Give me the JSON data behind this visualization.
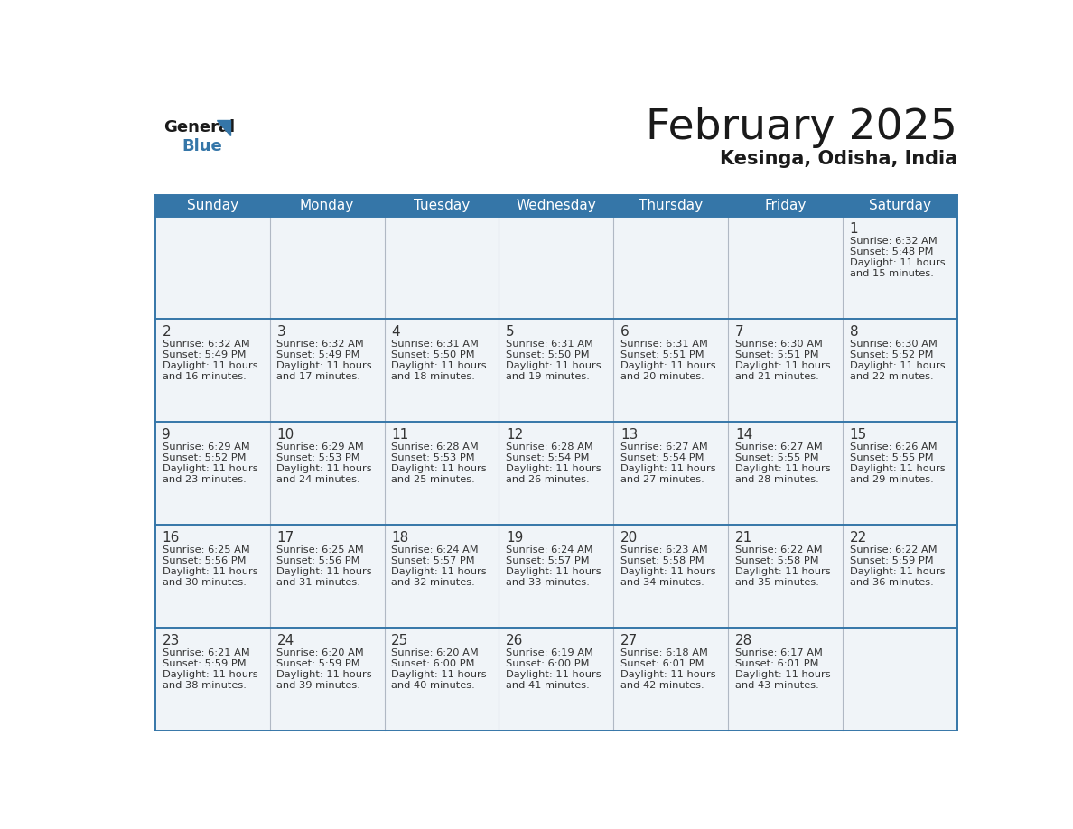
{
  "title": "February 2025",
  "subtitle": "Kesinga, Odisha, India",
  "header_color": "#3576a8",
  "header_text_color": "#ffffff",
  "days_of_week": [
    "Sunday",
    "Monday",
    "Tuesday",
    "Wednesday",
    "Thursday",
    "Friday",
    "Saturday"
  ],
  "bg_color": "#ffffff",
  "cell_bg": "#f0f4f8",
  "border_color": "#3576a8",
  "day_number_color": "#333333",
  "info_text_color": "#333333",
  "title_color": "#1a1a1a",
  "subtitle_color": "#1a1a1a",
  "calendar": [
    [
      null,
      null,
      null,
      null,
      null,
      null,
      1
    ],
    [
      2,
      3,
      4,
      5,
      6,
      7,
      8
    ],
    [
      9,
      10,
      11,
      12,
      13,
      14,
      15
    ],
    [
      16,
      17,
      18,
      19,
      20,
      21,
      22
    ],
    [
      23,
      24,
      25,
      26,
      27,
      28,
      null
    ]
  ],
  "sun_data": {
    "1": {
      "rise": "6:32 AM",
      "set": "5:48 PM",
      "daylight": "11 hours and 15 minutes."
    },
    "2": {
      "rise": "6:32 AM",
      "set": "5:49 PM",
      "daylight": "11 hours and 16 minutes."
    },
    "3": {
      "rise": "6:32 AM",
      "set": "5:49 PM",
      "daylight": "11 hours and 17 minutes."
    },
    "4": {
      "rise": "6:31 AM",
      "set": "5:50 PM",
      "daylight": "11 hours and 18 minutes."
    },
    "5": {
      "rise": "6:31 AM",
      "set": "5:50 PM",
      "daylight": "11 hours and 19 minutes."
    },
    "6": {
      "rise": "6:31 AM",
      "set": "5:51 PM",
      "daylight": "11 hours and 20 minutes."
    },
    "7": {
      "rise": "6:30 AM",
      "set": "5:51 PM",
      "daylight": "11 hours and 21 minutes."
    },
    "8": {
      "rise": "6:30 AM",
      "set": "5:52 PM",
      "daylight": "11 hours and 22 minutes."
    },
    "9": {
      "rise": "6:29 AM",
      "set": "5:52 PM",
      "daylight": "11 hours and 23 minutes."
    },
    "10": {
      "rise": "6:29 AM",
      "set": "5:53 PM",
      "daylight": "11 hours and 24 minutes."
    },
    "11": {
      "rise": "6:28 AM",
      "set": "5:53 PM",
      "daylight": "11 hours and 25 minutes."
    },
    "12": {
      "rise": "6:28 AM",
      "set": "5:54 PM",
      "daylight": "11 hours and 26 minutes."
    },
    "13": {
      "rise": "6:27 AM",
      "set": "5:54 PM",
      "daylight": "11 hours and 27 minutes."
    },
    "14": {
      "rise": "6:27 AM",
      "set": "5:55 PM",
      "daylight": "11 hours and 28 minutes."
    },
    "15": {
      "rise": "6:26 AM",
      "set": "5:55 PM",
      "daylight": "11 hours and 29 minutes."
    },
    "16": {
      "rise": "6:25 AM",
      "set": "5:56 PM",
      "daylight": "11 hours and 30 minutes."
    },
    "17": {
      "rise": "6:25 AM",
      "set": "5:56 PM",
      "daylight": "11 hours and 31 minutes."
    },
    "18": {
      "rise": "6:24 AM",
      "set": "5:57 PM",
      "daylight": "11 hours and 32 minutes."
    },
    "19": {
      "rise": "6:24 AM",
      "set": "5:57 PM",
      "daylight": "11 hours and 33 minutes."
    },
    "20": {
      "rise": "6:23 AM",
      "set": "5:58 PM",
      "daylight": "11 hours and 34 minutes."
    },
    "21": {
      "rise": "6:22 AM",
      "set": "5:58 PM",
      "daylight": "11 hours and 35 minutes."
    },
    "22": {
      "rise": "6:22 AM",
      "set": "5:59 PM",
      "daylight": "11 hours and 36 minutes."
    },
    "23": {
      "rise": "6:21 AM",
      "set": "5:59 PM",
      "daylight": "11 hours and 38 minutes."
    },
    "24": {
      "rise": "6:20 AM",
      "set": "5:59 PM",
      "daylight": "11 hours and 39 minutes."
    },
    "25": {
      "rise": "6:20 AM",
      "set": "6:00 PM",
      "daylight": "11 hours and 40 minutes."
    },
    "26": {
      "rise": "6:19 AM",
      "set": "6:00 PM",
      "daylight": "11 hours and 41 minutes."
    },
    "27": {
      "rise": "6:18 AM",
      "set": "6:01 PM",
      "daylight": "11 hours and 42 minutes."
    },
    "28": {
      "rise": "6:17 AM",
      "set": "6:01 PM",
      "daylight": "11 hours and 43 minutes."
    }
  }
}
